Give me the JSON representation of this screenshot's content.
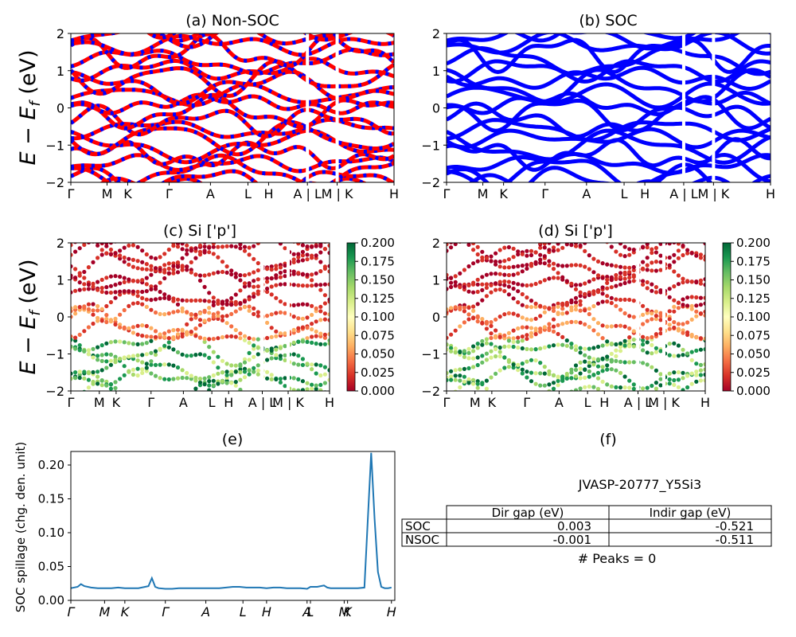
{
  "panels": {
    "a": {
      "title": "(a) Non-SOC"
    },
    "b": {
      "title": "(b) SOC"
    },
    "c": {
      "title": "(c)  Si ['p']"
    },
    "d": {
      "title": "(d) Si ['p']"
    },
    "e": {
      "title": "(e)"
    },
    "f": {
      "title": "(f)"
    }
  },
  "band_ylabel": "E − E",
  "band_ylabel_sub": "f",
  "band_ylabel_unit": " (eV)",
  "spillage_ylabel": "SOC spillage (chg. den. unit)",
  "colors": {
    "nonsoc_a": "#ff0000",
    "nonsoc_b": "#0000ff",
    "soc": "#0000ff",
    "spillage_line": "#1f77b4",
    "colormap": [
      "#a50026",
      "#d73027",
      "#f46d43",
      "#fdae61",
      "#fee08b",
      "#ffffbf",
      "#d9ef8b",
      "#a6d96a",
      "#66bd63",
      "#1a9850",
      "#006837"
    ]
  },
  "chart_data": [
    {
      "id": "a",
      "type": "line",
      "title": "(a) Non-SOC",
      "ylim": [
        -2,
        2
      ],
      "yticks": [
        -2,
        -1,
        0,
        1,
        2
      ],
      "kpath_labels": [
        "Γ",
        "M",
        "K",
        "Γ",
        "A",
        "L",
        "H",
        "A | L",
        "M | K",
        "H"
      ],
      "kpath_positions": [
        0,
        0.14,
        0.22,
        0.38,
        0.54,
        0.685,
        0.765,
        0.915,
        1.03,
        1.25
      ]
    },
    {
      "id": "b",
      "type": "line",
      "title": "(b) SOC",
      "ylim": [
        -2,
        2
      ],
      "yticks": [
        -2,
        -1,
        0,
        1,
        2
      ],
      "kpath_labels": [
        "Γ",
        "M",
        "K",
        "Γ",
        "A",
        "L",
        "H",
        "A | L",
        "M | K",
        "H"
      ],
      "kpath_positions": [
        0,
        0.14,
        0.22,
        0.38,
        0.54,
        0.685,
        0.765,
        0.915,
        1.03,
        1.25
      ]
    },
    {
      "id": "c",
      "type": "scatter",
      "title": "(c)  Si ['p']",
      "ylim": [
        -2,
        2
      ],
      "yticks": [
        -2,
        -1,
        0,
        1,
        2
      ],
      "kpath_labels": [
        "Γ",
        "M",
        "K",
        "Γ",
        "A",
        "L",
        "H",
        "A | L",
        "M | K",
        "H"
      ],
      "kpath_positions": [
        0,
        0.11,
        0.175,
        0.31,
        0.435,
        0.545,
        0.61,
        0.74,
        0.84,
        1.0
      ],
      "colorbar": {
        "min": 0.0,
        "max": 0.2,
        "ticks": [
          "0.000",
          "0.025",
          "0.050",
          "0.075",
          "0.100",
          "0.125",
          "0.150",
          "0.175",
          "0.200"
        ]
      }
    },
    {
      "id": "d",
      "type": "scatter",
      "title": "(d) Si ['p']",
      "ylim": [
        -2,
        2
      ],
      "yticks": [
        -2,
        -1,
        0,
        1,
        2
      ],
      "kpath_labels": [
        "Γ",
        "M",
        "K",
        "Γ",
        "A",
        "L",
        "H",
        "A | L",
        "M | K",
        "H"
      ],
      "kpath_positions": [
        0,
        0.11,
        0.175,
        0.31,
        0.435,
        0.545,
        0.61,
        0.74,
        0.84,
        1.0
      ],
      "colorbar": {
        "min": 0.0,
        "max": 0.2,
        "ticks": [
          "0.000",
          "0.025",
          "0.050",
          "0.075",
          "0.100",
          "0.125",
          "0.150",
          "0.175",
          "0.200"
        ]
      }
    },
    {
      "id": "e",
      "type": "line",
      "title": "(e)",
      "ylabel": "SOC spillage (chg. den. unit)",
      "ylim": [
        0,
        0.22
      ],
      "yticks": [
        0.0,
        0.05,
        0.1,
        0.15,
        0.2
      ],
      "ytick_labels": [
        "0.00",
        "0.05",
        "0.10",
        "0.15",
        "0.20"
      ],
      "kpath_labels": [
        "Γ",
        "M",
        "K",
        "Γ",
        "A",
        "L",
        "H",
        "A",
        "L",
        "M",
        "K",
        "H"
      ],
      "kpath_positions": [
        0,
        10,
        16,
        28,
        40,
        51,
        58,
        70,
        71,
        81,
        82,
        95
      ],
      "x": [
        0,
        2,
        3,
        4,
        6,
        8,
        10,
        12,
        14,
        16,
        18,
        20,
        22,
        23,
        24,
        25,
        26,
        28,
        30,
        32,
        34,
        36,
        38,
        40,
        42,
        44,
        46,
        48,
        50,
        52,
        54,
        56,
        58,
        60,
        62,
        64,
        66,
        68,
        70,
        71,
        73,
        75,
        76,
        77,
        79,
        81,
        83,
        85,
        87,
        88,
        89,
        90,
        91,
        92,
        93,
        94,
        95
      ],
      "y": [
        0.018,
        0.02,
        0.024,
        0.021,
        0.019,
        0.018,
        0.018,
        0.018,
        0.019,
        0.018,
        0.018,
        0.018,
        0.02,
        0.021,
        0.033,
        0.02,
        0.018,
        0.017,
        0.017,
        0.018,
        0.018,
        0.018,
        0.018,
        0.018,
        0.018,
        0.018,
        0.019,
        0.02,
        0.02,
        0.019,
        0.019,
        0.019,
        0.018,
        0.019,
        0.019,
        0.018,
        0.018,
        0.018,
        0.017,
        0.02,
        0.02,
        0.022,
        0.019,
        0.018,
        0.018,
        0.018,
        0.018,
        0.018,
        0.019,
        0.12,
        0.218,
        0.12,
        0.042,
        0.02,
        0.018,
        0.018,
        0.019
      ]
    },
    {
      "id": "f",
      "type": "table",
      "title": "(f)",
      "caption": "JVASP-20777_Y5Si3",
      "columns": [
        "Dir gap (eV)",
        "Indir gap (eV)"
      ],
      "rows": [
        {
          "label": "SOC",
          "values": [
            "0.003",
            "-0.521"
          ]
        },
        {
          "label": "NSOC",
          "values": [
            "-0.001",
            "-0.511"
          ]
        }
      ],
      "footer": "# Peaks = 0"
    }
  ]
}
